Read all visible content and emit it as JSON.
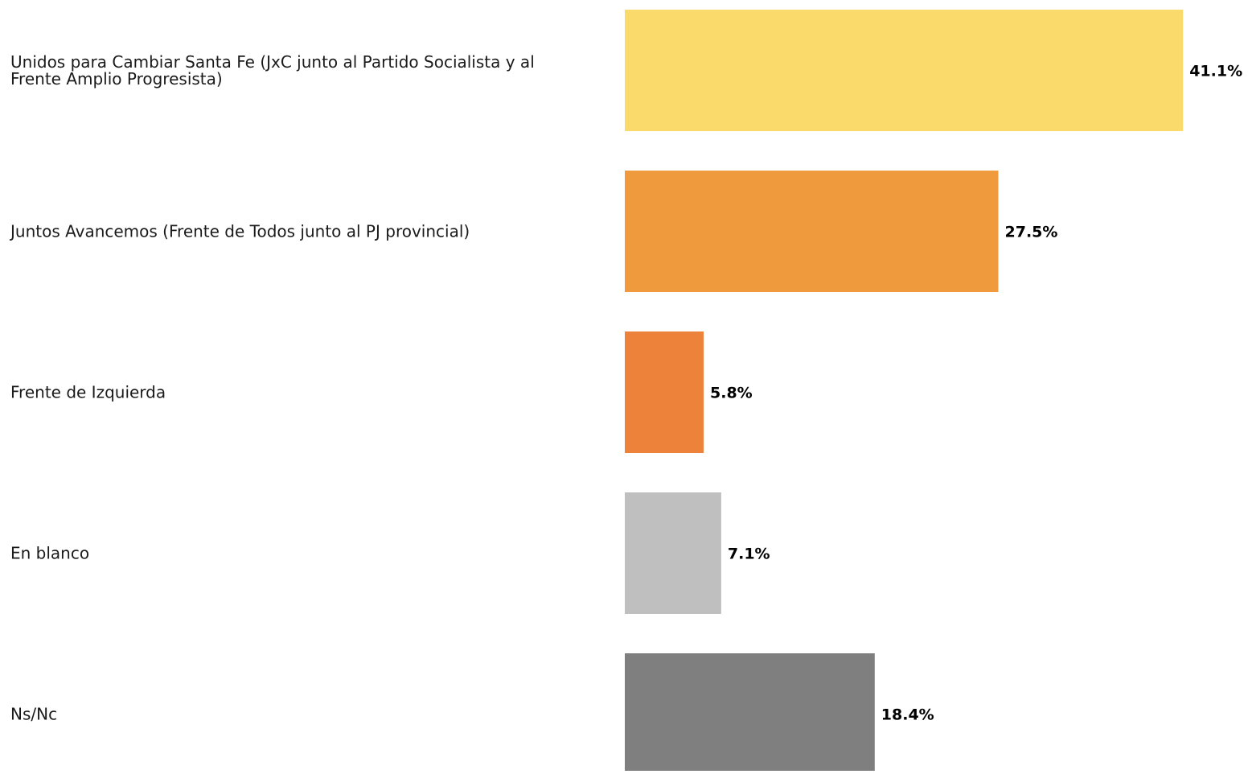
{
  "chart_data": {
    "type": "bar",
    "orientation": "horizontal",
    "categories": [
      [
        "Unidos para Cambiar Santa Fe (JxC junto al Partido Socialista y al",
        "Frente Amplio Progresista)"
      ],
      [
        "Juntos Avancemos (Frente de Todos junto al PJ provincial)"
      ],
      [
        "Frente de Izquierda"
      ],
      [
        "En blanco"
      ],
      [
        "Ns/Nc"
      ]
    ],
    "values": [
      41.1,
      27.5,
      5.8,
      7.1,
      18.4
    ],
    "value_labels": [
      "41.1%",
      "27.5%",
      "5.8%",
      "7.1%",
      "18.4%"
    ],
    "colors": [
      "#F9DA6A",
      "#EF9A3D",
      "#ED823A",
      "#BFBFBF",
      "#7F7F7F"
    ],
    "title": "",
    "xlabel": "",
    "ylabel": "",
    "grid": false,
    "legend": false
  }
}
